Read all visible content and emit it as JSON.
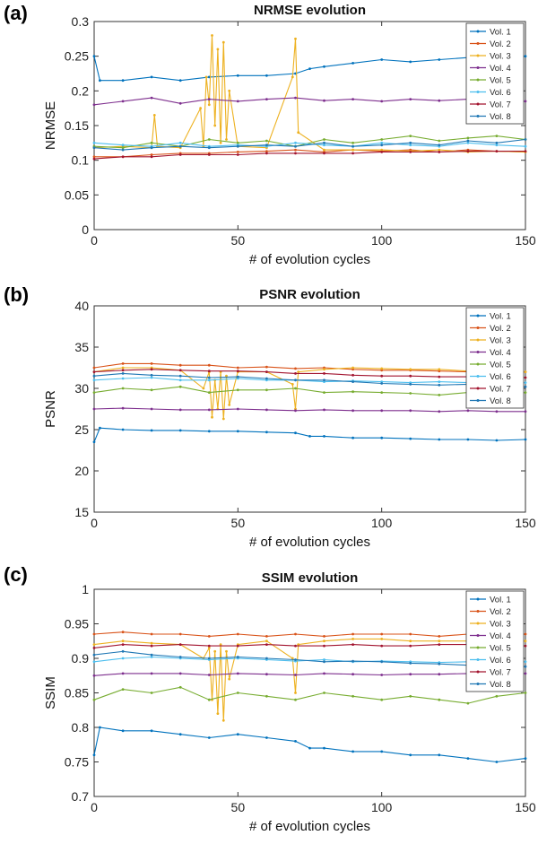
{
  "panels": [
    {
      "label": "(a)"
    },
    {
      "label": "(b)"
    },
    {
      "label": "(c)"
    }
  ],
  "legend_entries": [
    "Vol. 1",
    "Vol. 2",
    "Vol. 3",
    "Vol. 4",
    "Vol. 5",
    "Vol. 6",
    "Vol. 7",
    "Vol. 8"
  ],
  "series_colors": [
    "#0072BD",
    "#D95319",
    "#EDB120",
    "#7E2F8E",
    "#77AC30",
    "#4DBEEE",
    "#A2142F",
    "#1F77B4"
  ],
  "chart_data": [
    {
      "type": "line",
      "title": "NRMSE evolution",
      "xlabel": "# of evolution cycles",
      "ylabel": "NRMSE",
      "xlim": [
        0,
        150
      ],
      "ylim": [
        0,
        0.3
      ],
      "xticks": [
        "0",
        "50",
        "100",
        "150"
      ],
      "yticks": [
        "0",
        "0.05",
        "0.1",
        "0.15",
        "0.2",
        "0.25",
        "0.3"
      ],
      "legend_position": "top-right",
      "series": [
        {
          "name": "Vol. 1",
          "x": [
            0,
            2,
            10,
            20,
            30,
            40,
            50,
            60,
            70,
            75,
            80,
            90,
            100,
            110,
            120,
            130,
            140,
            150
          ],
          "values": [
            0.25,
            0.215,
            0.215,
            0.22,
            0.215,
            0.22,
            0.222,
            0.222,
            0.225,
            0.232,
            0.235,
            0.24,
            0.245,
            0.242,
            0.245,
            0.248,
            0.25,
            0.25
          ]
        },
        {
          "name": "Vol. 2",
          "x": [
            0,
            10,
            20,
            30,
            40,
            50,
            60,
            70,
            80,
            90,
            100,
            110,
            120,
            130,
            140,
            150
          ],
          "values": [
            0.105,
            0.105,
            0.108,
            0.11,
            0.11,
            0.112,
            0.113,
            0.115,
            0.112,
            0.115,
            0.113,
            0.115,
            0.112,
            0.115,
            0.113,
            0.112
          ]
        },
        {
          "name": "Vol. 3",
          "x": [
            0,
            10,
            20,
            21,
            22,
            30,
            37,
            38,
            39,
            40,
            41,
            42,
            43,
            44,
            45,
            46,
            47,
            50,
            60,
            69,
            70,
            71,
            80,
            90,
            100,
            110,
            120,
            130,
            140,
            150
          ],
          "values": [
            0.118,
            0.12,
            0.118,
            0.165,
            0.12,
            0.118,
            0.175,
            0.12,
            0.22,
            0.18,
            0.28,
            0.15,
            0.26,
            0.125,
            0.27,
            0.13,
            0.2,
            0.12,
            0.118,
            0.22,
            0.275,
            0.14,
            0.115,
            0.115,
            0.115,
            0.113,
            0.115,
            0.112,
            0.113,
            0.112
          ]
        },
        {
          "name": "Vol. 4",
          "x": [
            0,
            10,
            20,
            30,
            40,
            50,
            60,
            70,
            80,
            90,
            100,
            110,
            120,
            130,
            140,
            150
          ],
          "values": [
            0.18,
            0.185,
            0.19,
            0.182,
            0.188,
            0.185,
            0.188,
            0.19,
            0.186,
            0.188,
            0.185,
            0.188,
            0.186,
            0.188,
            0.182,
            0.185
          ]
        },
        {
          "name": "Vol. 5",
          "x": [
            0,
            10,
            20,
            30,
            40,
            50,
            60,
            70,
            80,
            90,
            100,
            110,
            120,
            130,
            140,
            150
          ],
          "values": [
            0.12,
            0.118,
            0.125,
            0.12,
            0.13,
            0.125,
            0.128,
            0.12,
            0.13,
            0.125,
            0.13,
            0.135,
            0.128,
            0.132,
            0.135,
            0.13
          ]
        },
        {
          "name": "Vol. 6",
          "x": [
            0,
            10,
            20,
            30,
            40,
            50,
            60,
            70,
            80,
            90,
            100,
            110,
            120,
            130,
            140,
            150
          ],
          "values": [
            0.125,
            0.122,
            0.12,
            0.125,
            0.12,
            0.122,
            0.12,
            0.125,
            0.122,
            0.12,
            0.125,
            0.122,
            0.12,
            0.125,
            0.122,
            0.12
          ]
        },
        {
          "name": "Vol. 7",
          "x": [
            0,
            10,
            20,
            30,
            40,
            50,
            60,
            70,
            80,
            90,
            100,
            110,
            120,
            130,
            140,
            150
          ],
          "values": [
            0.102,
            0.105,
            0.105,
            0.108,
            0.108,
            0.108,
            0.11,
            0.11,
            0.11,
            0.11,
            0.112,
            0.112,
            0.112,
            0.113,
            0.113,
            0.113
          ]
        },
        {
          "name": "Vol. 8",
          "x": [
            0,
            10,
            20,
            30,
            40,
            50,
            60,
            70,
            80,
            90,
            100,
            110,
            120,
            130,
            140,
            150
          ],
          "values": [
            0.118,
            0.115,
            0.118,
            0.12,
            0.118,
            0.12,
            0.122,
            0.12,
            0.125,
            0.12,
            0.122,
            0.125,
            0.122,
            0.128,
            0.125,
            0.13
          ]
        }
      ]
    },
    {
      "type": "line",
      "title": "PSNR evolution",
      "xlabel": "# of evolution cycles",
      "ylabel": "PSNR",
      "xlim": [
        0,
        150
      ],
      "ylim": [
        15,
        40
      ],
      "xticks": [
        "0",
        "50",
        "100",
        "150"
      ],
      "yticks": [
        "15",
        "20",
        "25",
        "30",
        "35",
        "40"
      ],
      "legend_position": "top-right",
      "series": [
        {
          "name": "Vol. 1",
          "x": [
            0,
            2,
            10,
            20,
            30,
            40,
            50,
            60,
            70,
            75,
            80,
            90,
            100,
            110,
            120,
            130,
            140,
            150
          ],
          "values": [
            23.5,
            25.2,
            25,
            24.9,
            24.9,
            24.8,
            24.8,
            24.7,
            24.6,
            24.2,
            24.2,
            24,
            24,
            23.9,
            23.8,
            23.8,
            23.7,
            23.8
          ]
        },
        {
          "name": "Vol. 2",
          "x": [
            0,
            10,
            20,
            30,
            40,
            50,
            60,
            70,
            80,
            90,
            100,
            110,
            120,
            130,
            140,
            150
          ],
          "values": [
            32.5,
            33,
            33,
            32.8,
            32.8,
            32.5,
            32.6,
            32.4,
            32.5,
            32.3,
            32.2,
            32.2,
            32.1,
            32,
            31.9,
            32
          ]
        },
        {
          "name": "Vol. 3",
          "x": [
            0,
            10,
            20,
            30,
            38,
            40,
            41,
            42,
            43,
            44,
            45,
            46,
            47,
            50,
            60,
            69,
            70,
            71,
            80,
            90,
            100,
            110,
            120,
            130,
            140,
            150
          ],
          "values": [
            32,
            32.5,
            32.5,
            32.2,
            30,
            32,
            26.5,
            31,
            27.5,
            32,
            26.3,
            31.5,
            28,
            32,
            32,
            30.5,
            27.5,
            32,
            32.3,
            32.5,
            32.4,
            32.3,
            32.3,
            32.1,
            32,
            32
          ]
        },
        {
          "name": "Vol. 4",
          "x": [
            0,
            10,
            20,
            30,
            40,
            50,
            60,
            70,
            80,
            90,
            100,
            110,
            120,
            130,
            140,
            150
          ],
          "values": [
            27.5,
            27.6,
            27.5,
            27.4,
            27.4,
            27.5,
            27.4,
            27.3,
            27.4,
            27.3,
            27.3,
            27.3,
            27.2,
            27.3,
            27.2,
            27.2
          ]
        },
        {
          "name": "Vol. 5",
          "x": [
            0,
            10,
            20,
            30,
            40,
            50,
            60,
            70,
            80,
            90,
            100,
            110,
            120,
            130,
            140,
            150
          ],
          "values": [
            29.5,
            30,
            29.8,
            30.2,
            29.5,
            29.8,
            29.8,
            30,
            29.5,
            29.6,
            29.5,
            29.4,
            29.2,
            29.5,
            29,
            29.5
          ]
        },
        {
          "name": "Vol. 6",
          "x": [
            0,
            10,
            20,
            30,
            40,
            50,
            60,
            70,
            80,
            90,
            100,
            110,
            120,
            130,
            140,
            150
          ],
          "values": [
            31,
            31.2,
            31.3,
            31,
            31,
            31.2,
            31,
            31,
            30.8,
            30.9,
            30.8,
            30.7,
            30.8,
            30.7,
            30.6,
            30.7
          ]
        },
        {
          "name": "Vol. 7",
          "x": [
            0,
            10,
            20,
            30,
            40,
            50,
            60,
            70,
            80,
            90,
            100,
            110,
            120,
            130,
            140,
            150
          ],
          "values": [
            32,
            32.2,
            32.3,
            32.2,
            32.1,
            32.1,
            32,
            31.8,
            31.8,
            31.6,
            31.5,
            31.5,
            31.4,
            31.4,
            31.3,
            31.3
          ]
        },
        {
          "name": "Vol. 8",
          "x": [
            0,
            10,
            20,
            30,
            40,
            50,
            60,
            70,
            80,
            90,
            100,
            110,
            120,
            130,
            140,
            150
          ],
          "values": [
            31.5,
            31.8,
            31.6,
            31.5,
            31.3,
            31.4,
            31.2,
            31,
            31,
            30.8,
            30.6,
            30.5,
            30.4,
            30.5,
            30.3,
            30.2
          ]
        }
      ]
    },
    {
      "type": "line",
      "title": "SSIM evolution",
      "xlabel": "# of evolution cycles",
      "ylabel": "SSIM",
      "xlim": [
        0,
        150
      ],
      "ylim": [
        0.7,
        1
      ],
      "xticks": [
        "0",
        "50",
        "100",
        "150"
      ],
      "yticks": [
        "0.7",
        "0.75",
        "0.8",
        "0.85",
        "0.9",
        "0.95",
        "1"
      ],
      "legend_position": "top-right",
      "series": [
        {
          "name": "Vol. 1",
          "x": [
            0,
            2,
            10,
            20,
            30,
            40,
            50,
            60,
            70,
            75,
            80,
            90,
            100,
            110,
            120,
            130,
            140,
            150
          ],
          "values": [
            0.76,
            0.8,
            0.795,
            0.795,
            0.79,
            0.785,
            0.79,
            0.785,
            0.78,
            0.77,
            0.77,
            0.765,
            0.765,
            0.76,
            0.76,
            0.755,
            0.75,
            0.755
          ]
        },
        {
          "name": "Vol. 2",
          "x": [
            0,
            10,
            20,
            30,
            40,
            50,
            60,
            70,
            80,
            90,
            100,
            110,
            120,
            130,
            140,
            150
          ],
          "values": [
            0.935,
            0.938,
            0.935,
            0.935,
            0.932,
            0.935,
            0.932,
            0.935,
            0.932,
            0.935,
            0.935,
            0.935,
            0.932,
            0.935,
            0.932,
            0.935
          ]
        },
        {
          "name": "Vol. 3",
          "x": [
            0,
            10,
            20,
            30,
            38,
            40,
            41,
            42,
            43,
            44,
            45,
            46,
            47,
            50,
            60,
            69,
            70,
            71,
            80,
            90,
            100,
            110,
            120,
            130,
            140,
            150
          ],
          "values": [
            0.92,
            0.925,
            0.922,
            0.92,
            0.9,
            0.915,
            0.84,
            0.91,
            0.82,
            0.92,
            0.81,
            0.91,
            0.87,
            0.92,
            0.925,
            0.9,
            0.85,
            0.92,
            0.925,
            0.928,
            0.928,
            0.925,
            0.925,
            0.925,
            0.925,
            0.925
          ]
        },
        {
          "name": "Vol. 4",
          "x": [
            0,
            10,
            20,
            30,
            40,
            50,
            60,
            70,
            80,
            90,
            100,
            110,
            120,
            130,
            140,
            150
          ],
          "values": [
            0.875,
            0.878,
            0.878,
            0.878,
            0.876,
            0.878,
            0.877,
            0.876,
            0.878,
            0.877,
            0.876,
            0.877,
            0.877,
            0.878,
            0.877,
            0.878
          ]
        },
        {
          "name": "Vol. 5",
          "x": [
            0,
            10,
            20,
            30,
            40,
            50,
            60,
            70,
            80,
            90,
            100,
            110,
            120,
            130,
            140,
            150
          ],
          "values": [
            0.84,
            0.855,
            0.85,
            0.858,
            0.84,
            0.85,
            0.845,
            0.84,
            0.85,
            0.845,
            0.84,
            0.845,
            0.84,
            0.835,
            0.845,
            0.85
          ]
        },
        {
          "name": "Vol. 6",
          "x": [
            0,
            10,
            20,
            30,
            40,
            50,
            60,
            70,
            80,
            90,
            100,
            110,
            120,
            130,
            140,
            150
          ],
          "values": [
            0.895,
            0.9,
            0.902,
            0.9,
            0.898,
            0.9,
            0.898,
            0.896,
            0.898,
            0.895,
            0.896,
            0.895,
            0.894,
            0.895,
            0.894,
            0.895
          ]
        },
        {
          "name": "Vol. 7",
          "x": [
            0,
            10,
            20,
            30,
            40,
            50,
            60,
            70,
            80,
            90,
            100,
            110,
            120,
            130,
            140,
            150
          ],
          "values": [
            0.915,
            0.92,
            0.918,
            0.92,
            0.918,
            0.918,
            0.92,
            0.918,
            0.918,
            0.92,
            0.918,
            0.918,
            0.92,
            0.92,
            0.918,
            0.918
          ]
        },
        {
          "name": "Vol. 8",
          "x": [
            0,
            10,
            20,
            30,
            40,
            50,
            60,
            70,
            80,
            90,
            100,
            110,
            120,
            130,
            140,
            150
          ],
          "values": [
            0.905,
            0.91,
            0.905,
            0.902,
            0.9,
            0.902,
            0.9,
            0.898,
            0.895,
            0.896,
            0.895,
            0.893,
            0.892,
            0.89,
            0.89,
            0.888
          ]
        }
      ]
    }
  ]
}
